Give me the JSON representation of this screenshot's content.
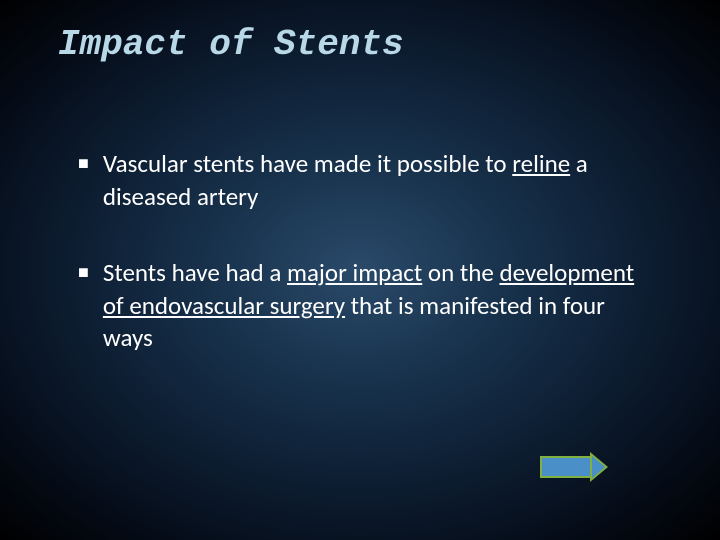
{
  "slide": {
    "title": "Impact of Stents",
    "title_color": "#b8d8e8",
    "title_fontsize": 36,
    "background_gradient": [
      "#2a4a6a",
      "#1a3550",
      "#0f2238",
      "#050c18",
      "#000000"
    ],
    "bullets": [
      {
        "pre": "Vascular stents have made it possible to ",
        "underlined": "reline",
        "post": " a diseased artery"
      },
      {
        "pre": "Stents have had a ",
        "underlined": "major impact",
        "mid": " on the ",
        "underlined2": "development of endovascular surgery",
        "post": " that is manifested in four ways"
      }
    ],
    "body_fontsize": 25,
    "body_color": "#ffffff",
    "arrow": {
      "fill_color": "#4a8fc7",
      "border_color": "#7fb040"
    }
  }
}
